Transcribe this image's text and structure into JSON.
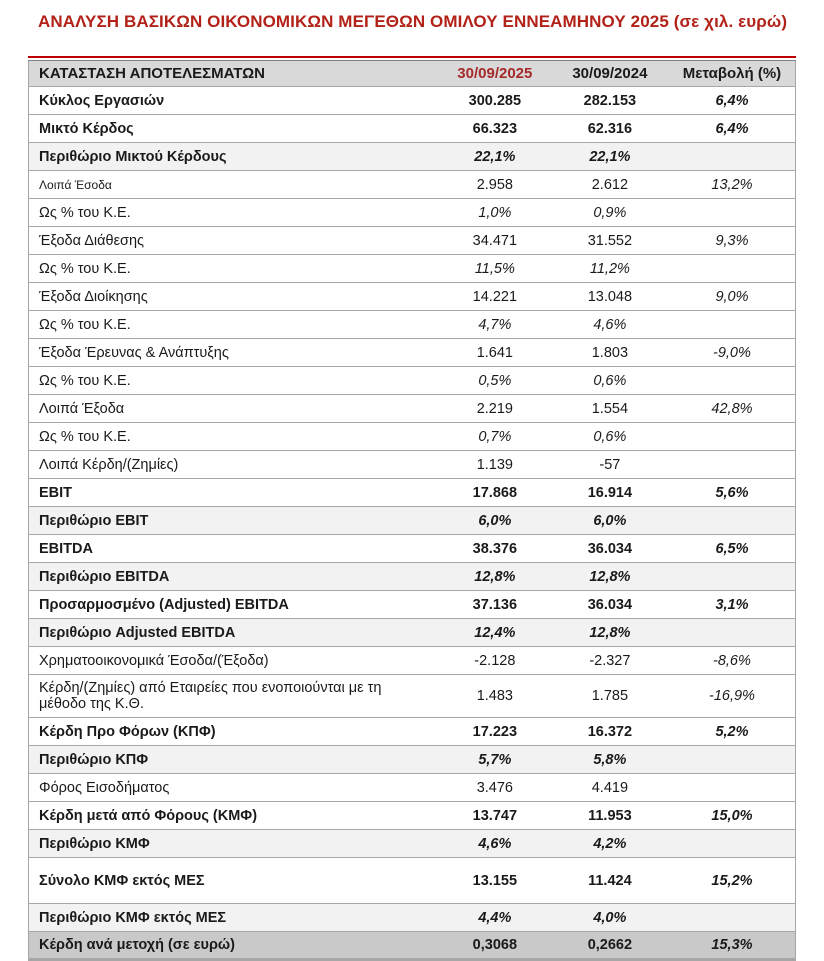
{
  "title": "ΑΝΑΛΥΣΗ ΒΑΣΙΚΩΝ ΟΙΚΟΝΟΜΙΚΩΝ ΜΕΓΕΘΩΝ ΟΜΙΛΟΥ ΕΝΝΕΑΜΗΝΟΥ 2025 (σε χιλ. ευρώ)",
  "colors": {
    "title_red": "#B22218",
    "header_date_red": "#A52A2A",
    "rule_red": "#C00000",
    "header_bg": "#D9D9D9",
    "margin_row_bg": "#F2F2F2",
    "total_row_bg": "#C9C9C9",
    "border_gray": "#A6A6A6",
    "text": "#1A1A1A"
  },
  "table": {
    "headers": [
      "ΚΑΤΑΣΤΑΣΗ ΑΠΟΤΕΛΕΣΜΑΤΩΝ",
      "30/09/2025",
      "30/09/2024",
      "Μεταβολή (%)"
    ],
    "rows": [
      {
        "label": "Κύκλος Εργασιών",
        "v2025": "300.285",
        "v2024": "282.153",
        "change": "6,4%",
        "style": "bold"
      },
      {
        "label": "Μικτό Κέρδος",
        "v2025": "66.323",
        "v2024": "62.316",
        "change": "6,4%",
        "style": "bold"
      },
      {
        "label": "Περιθώριο Μικτού Κέρδους",
        "v2025": "22,1%",
        "v2024": "22,1%",
        "change": "",
        "style": "margin"
      },
      {
        "label": "Λοιπά Έσοδα",
        "v2025": "2.958",
        "v2024": "2.612",
        "change": "13,2%",
        "style": "regular",
        "small_label": true
      },
      {
        "label": "Ως % του Κ.Ε.",
        "v2025": "1,0%",
        "v2024": "0,9%",
        "change": "",
        "style": "pct"
      },
      {
        "label": "Έξοδα Διάθεσης",
        "v2025": "34.471",
        "v2024": "31.552",
        "change": "9,3%",
        "style": "regular"
      },
      {
        "label": "Ως % του Κ.Ε.",
        "v2025": "11,5%",
        "v2024": "11,2%",
        "change": "",
        "style": "pct"
      },
      {
        "label": "Έξοδα Διοίκησης",
        "v2025": "14.221",
        "v2024": "13.048",
        "change": "9,0%",
        "style": "regular"
      },
      {
        "label": "Ως % του Κ.Ε.",
        "v2025": "4,7%",
        "v2024": "4,6%",
        "change": "",
        "style": "pct"
      },
      {
        "label": "Έξοδα Έρευνας & Ανάπτυξης",
        "v2025": "1.641",
        "v2024": "1.803",
        "change": "-9,0%",
        "style": "regular"
      },
      {
        "label": "Ως % του Κ.Ε.",
        "v2025": "0,5%",
        "v2024": "0,6%",
        "change": "",
        "style": "pct"
      },
      {
        "label": "Λοιπά Έξοδα",
        "v2025": "2.219",
        "v2024": "1.554",
        "change": "42,8%",
        "style": "regular"
      },
      {
        "label": "Ως % του Κ.Ε.",
        "v2025": "0,7%",
        "v2024": "0,6%",
        "change": "",
        "style": "pct"
      },
      {
        "label": "Λοιπά Κέρδη/(Ζημίες)",
        "v2025": "1.139",
        "v2024": "-57",
        "change": "",
        "style": "regular"
      },
      {
        "label": "EBIT",
        "v2025": "17.868",
        "v2024": "16.914",
        "change": "5,6%",
        "style": "bold"
      },
      {
        "label": "Περιθώριο EBIT",
        "v2025": "6,0%",
        "v2024": "6,0%",
        "change": "",
        "style": "margin"
      },
      {
        "label": "EBITDA",
        "v2025": "38.376",
        "v2024": "36.034",
        "change": "6,5%",
        "style": "bold"
      },
      {
        "label": "Περιθώριο EBITDA",
        "v2025": "12,8%",
        "v2024": "12,8%",
        "change": "",
        "style": "margin"
      },
      {
        "label": "Προσαρμοσμένο (Adjusted) EBITDA",
        "v2025": "37.136",
        "v2024": "36.034",
        "change": "3,1%",
        "style": "bold"
      },
      {
        "label": "Περιθώριο Adjusted EBITDA",
        "v2025": "12,4%",
        "v2024": "12,8%",
        "change": "",
        "style": "margin"
      },
      {
        "label": "Χρηματοοικονομικά Έσοδα/(Έξοδα)",
        "v2025": "-2.128",
        "v2024": "-2.327",
        "change": "-8,6%",
        "style": "regular"
      },
      {
        "label": "Κέρδη/(Ζημίες) από Εταιρείες που ενοποιούνται με τη μέθοδο της Κ.Θ.",
        "v2025": "1.483",
        "v2024": "1.785",
        "change": "-16,9%",
        "style": "regular"
      },
      {
        "label": "Κέρδη Προ Φόρων  (ΚΠΦ)",
        "v2025": "17.223",
        "v2024": "16.372",
        "change": "5,2%",
        "style": "bold"
      },
      {
        "label": "Περιθώριο ΚΠΦ",
        "v2025": "5,7%",
        "v2024": "5,8%",
        "change": "",
        "style": "margin"
      },
      {
        "label": "Φόρος Εισοδήματος",
        "v2025": "3.476",
        "v2024": "4.419",
        "change": "",
        "style": "regular"
      },
      {
        "label": "Κέρδη μετά από Φόρους (ΚΜΦ)",
        "v2025": "13.747",
        "v2024": "11.953",
        "change": "15,0%",
        "style": "bold"
      },
      {
        "label": "Περιθώριο ΚΜΦ",
        "v2025": "4,6%",
        "v2024": "4,2%",
        "change": "",
        "style": "margin"
      },
      {
        "label": "Σύνολο ΚΜΦ εκτός ΜΕΣ",
        "v2025": "13.155",
        "v2024": "11.424",
        "change": "15,2%",
        "style": "bold",
        "tall": true
      },
      {
        "label": "Περιθώριο ΚΜΦ εκτός ΜΕΣ",
        "v2025": "4,4%",
        "v2024": "4,0%",
        "change": "",
        "style": "margin"
      },
      {
        "label": "Κέρδη ανά μετοχή (σε ευρώ)",
        "v2025": "0,3068",
        "v2024": "0,2662",
        "change": "15,3%",
        "style": "total"
      }
    ]
  }
}
